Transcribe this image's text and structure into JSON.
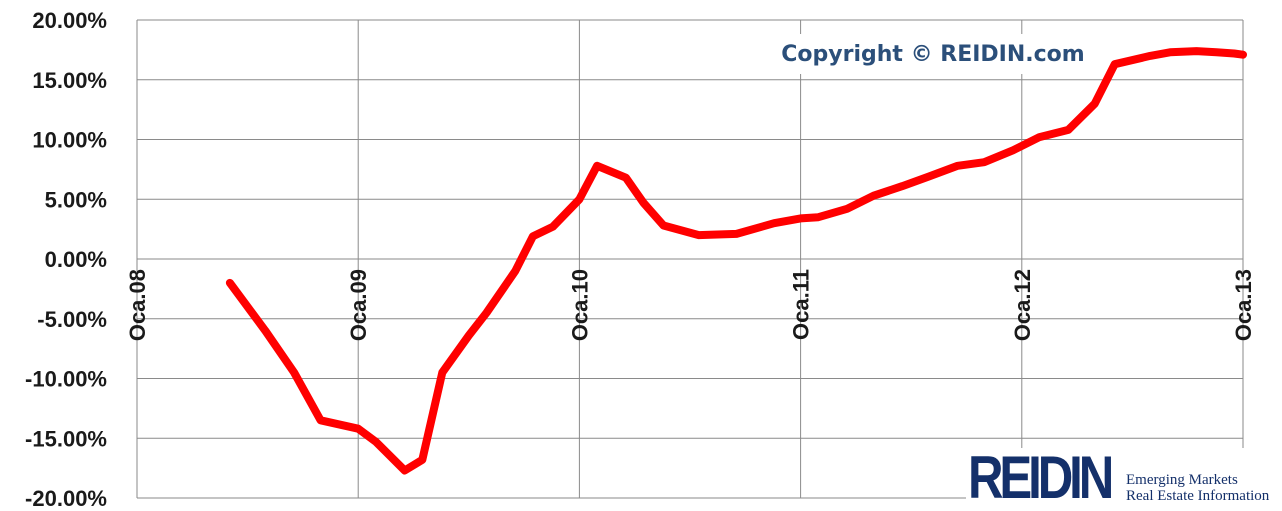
{
  "chart_data": {
    "type": "line",
    "title": "",
    "xlabel": "",
    "ylabel": "",
    "ylim": [
      -20,
      20
    ],
    "yticks": [
      20,
      15,
      10,
      5,
      0,
      -5,
      -10,
      -15,
      -20
    ],
    "ytick_labels": [
      "20.00%",
      "15.00%",
      "10.00%",
      "5.00%",
      "0.00%",
      "-5.00%",
      "-10.00%",
      "-15.00%",
      "-20.00%"
    ],
    "xlim": [
      2008.0,
      2013.0
    ],
    "xticks": [
      2008.0,
      2009.0,
      2010.0,
      2011.0,
      2012.0,
      2013.0
    ],
    "xtick_labels": [
      "Oca.08",
      "Oca.09",
      "Oca.10",
      "Oca.11",
      "Oca.12",
      "Oca.13"
    ],
    "grid": true,
    "series": [
      {
        "color": "#ff0000",
        "x": [
          2008.42,
          2008.58,
          2008.71,
          2008.83,
          2009.0,
          2009.08,
          2009.21,
          2009.29,
          2009.38,
          2009.5,
          2009.58,
          2009.71,
          2009.79,
          2009.88,
          2010.0,
          2010.08,
          2010.21,
          2010.29,
          2010.38,
          2010.54,
          2010.71,
          2010.88,
          2011.0,
          2011.08,
          2011.21,
          2011.33,
          2011.46,
          2011.58,
          2011.71,
          2011.83,
          2011.96,
          2012.08,
          2012.21,
          2012.33,
          2012.42,
          2012.58,
          2012.67,
          2012.79,
          2012.88,
          2012.96,
          2013.0
        ],
        "y": [
          -2,
          -6,
          -9.5,
          -13.5,
          -14.2,
          -15.3,
          -17.7,
          -16.8,
          -9.5,
          -6.4,
          -4.5,
          -1,
          1.9,
          2.7,
          5,
          7.8,
          6.8,
          4.7,
          2.8,
          2.0,
          2.1,
          3,
          3.4,
          3.5,
          4.2,
          5.3,
          6.1,
          6.9,
          7.8,
          8.1,
          9.1,
          10.2,
          10.8,
          13.0,
          16.3,
          17.0,
          17.3,
          17.4,
          17.3,
          17.2,
          17.1
        ]
      }
    ]
  },
  "watermark": {
    "copyright": "Copyright © REIDIN.com"
  },
  "logo": {
    "word": "REIDIN",
    "tagline_1": "Emerging Markets",
    "tagline_2": "Real Estate Information"
  }
}
